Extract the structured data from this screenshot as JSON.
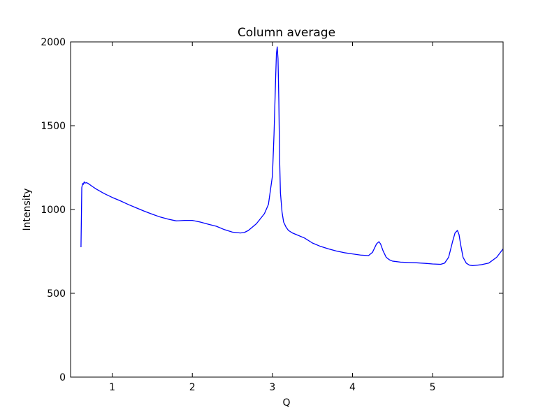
{
  "chart_data": {
    "type": "line",
    "title": "Column average",
    "xlabel": "Q",
    "ylabel": "Intensity",
    "xlim": [
      0.48,
      5.88
    ],
    "ylim": [
      0,
      2000
    ],
    "xticks": [
      1,
      2,
      3,
      4,
      5
    ],
    "yticks": [
      0,
      500,
      1000,
      1500,
      2000
    ],
    "grid": false,
    "legend": "none",
    "series": [
      {
        "color": "#0000ff",
        "x": [
          0.61,
          0.62,
          0.63,
          0.64,
          0.65,
          0.66,
          0.68,
          0.7,
          0.75,
          0.8,
          0.9,
          1.0,
          1.1,
          1.2,
          1.3,
          1.4,
          1.5,
          1.6,
          1.7,
          1.8,
          1.9,
          2.0,
          2.1,
          2.2,
          2.3,
          2.4,
          2.5,
          2.6,
          2.65,
          2.7,
          2.8,
          2.9,
          2.95,
          3.0,
          3.02,
          3.04,
          3.05,
          3.06,
          3.07,
          3.08,
          3.09,
          3.1,
          3.12,
          3.14,
          3.17,
          3.2,
          3.25,
          3.3,
          3.4,
          3.5,
          3.6,
          3.7,
          3.8,
          3.9,
          4.0,
          4.1,
          4.2,
          4.25,
          4.3,
          4.33,
          4.35,
          4.38,
          4.42,
          4.46,
          4.5,
          4.6,
          4.7,
          4.8,
          4.9,
          5.0,
          5.1,
          5.15,
          5.2,
          5.25,
          5.28,
          5.31,
          5.33,
          5.35,
          5.38,
          5.42,
          5.46,
          5.5,
          5.6,
          5.7,
          5.8,
          5.88
        ],
        "y": [
          775,
          1130,
          1155,
          1150,
          1165,
          1158,
          1160,
          1155,
          1138,
          1122,
          1095,
          1072,
          1052,
          1030,
          1010,
          990,
          972,
          955,
          942,
          932,
          935,
          935,
          925,
          912,
          900,
          880,
          865,
          860,
          863,
          875,
          915,
          975,
          1030,
          1200,
          1450,
          1780,
          1930,
          1970,
          1900,
          1650,
          1300,
          1100,
          985,
          925,
          895,
          875,
          860,
          850,
          830,
          800,
          780,
          765,
          752,
          742,
          735,
          728,
          725,
          745,
          795,
          808,
          795,
          755,
          715,
          700,
          692,
          686,
          684,
          682,
          679,
          675,
          673,
          680,
          715,
          810,
          860,
          875,
          850,
          790,
          715,
          680,
          668,
          665,
          670,
          680,
          715,
          765
        ]
      }
    ]
  }
}
